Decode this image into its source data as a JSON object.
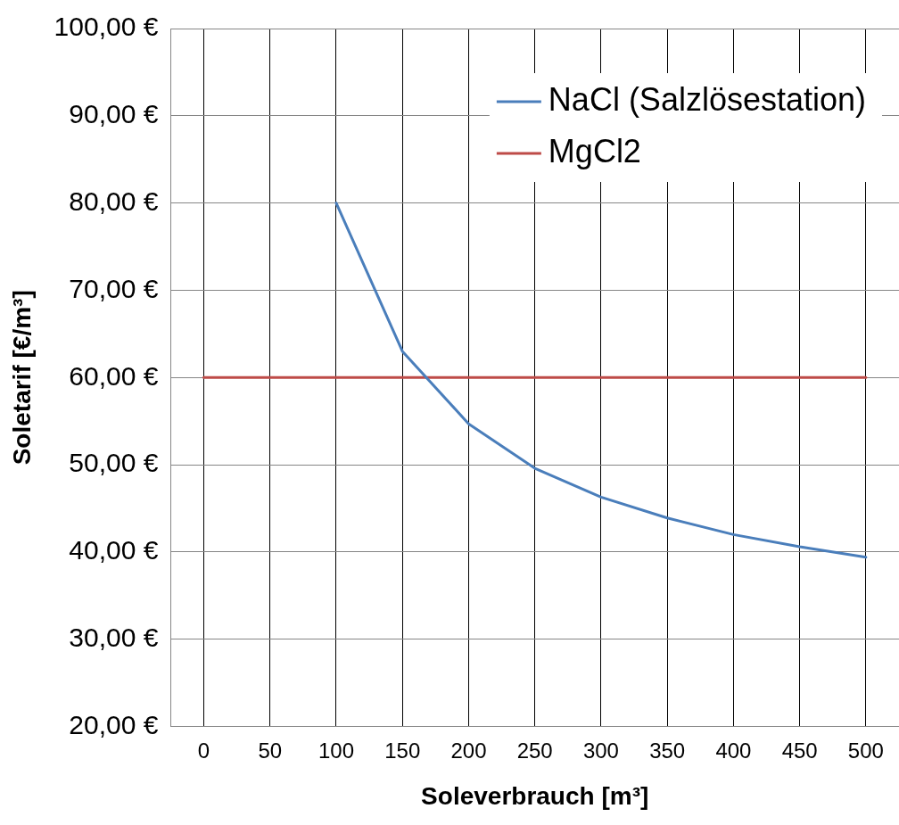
{
  "chart_data": {
    "type": "line",
    "xlabel": "Soleverbrauch [m³]",
    "ylabel": "Soletarif [€/m³]",
    "categories": [
      "0",
      "50",
      "100",
      "150",
      "200",
      "250",
      "300",
      "350",
      "400",
      "450",
      "500"
    ],
    "series": [
      {
        "name": "NaCl (Salzlösestation)",
        "color": "#4a7ebb",
        "values": [
          null,
          null,
          80,
          63,
          54.7,
          49.6,
          46.3,
          43.9,
          42,
          40.6,
          39.4
        ]
      },
      {
        "name": "MgCl2",
        "color": "#be4b48",
        "values": [
          60,
          60,
          60,
          60,
          60,
          60,
          60,
          60,
          60,
          60,
          60
        ]
      }
    ],
    "ylim": [
      20,
      100
    ],
    "yticks": [
      {
        "value": 20,
        "label": "20,00 €"
      },
      {
        "value": 30,
        "label": "30,00 €"
      },
      {
        "value": 40,
        "label": "40,00 €"
      },
      {
        "value": 50,
        "label": "50,00 €"
      },
      {
        "value": 60,
        "label": "60,00 €"
      },
      {
        "value": 70,
        "label": "70,00 €"
      },
      {
        "value": 80,
        "label": "80,00 €"
      },
      {
        "value": 90,
        "label": "90,00 €"
      },
      {
        "value": 100,
        "label": "100,00 €"
      }
    ],
    "grid": true,
    "legend": "top right",
    "marker": "none",
    "line_style": "solid"
  }
}
